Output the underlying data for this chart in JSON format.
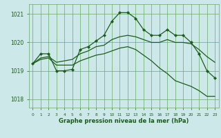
{
  "title": "Graphe pression niveau de la mer (hPa)",
  "bg_color": "#cce8e8",
  "grid_color": "#66aa66",
  "line_color": "#1a5c1a",
  "xlim": [
    -0.5,
    23.5
  ],
  "ylim": [
    1017.7,
    1021.35
  ],
  "yticks": [
    1018,
    1019,
    1020,
    1021
  ],
  "xticks": [
    0,
    1,
    2,
    3,
    4,
    5,
    6,
    7,
    8,
    9,
    10,
    11,
    12,
    13,
    14,
    15,
    16,
    17,
    18,
    19,
    20,
    21,
    22,
    23
  ],
  "line1_x": [
    0,
    1,
    2,
    3,
    4,
    5,
    6,
    7,
    8,
    9,
    10,
    11,
    12,
    13,
    14,
    15,
    16,
    17,
    18,
    19,
    20,
    21,
    22,
    23
  ],
  "line1_y": [
    1019.25,
    1019.6,
    1019.6,
    1019.0,
    1019.0,
    1019.05,
    1019.75,
    1019.85,
    1020.05,
    1020.25,
    1020.75,
    1021.05,
    1021.05,
    1020.85,
    1020.45,
    1020.25,
    1020.25,
    1020.45,
    1020.25,
    1020.25,
    1020.0,
    1019.6,
    1019.0,
    1018.75
  ],
  "line2_x": [
    0,
    1,
    2,
    3,
    4,
    5,
    6,
    7,
    8,
    9,
    10,
    11,
    12,
    13,
    14,
    15,
    16,
    17,
    18,
    19,
    20,
    21,
    22,
    23
  ],
  "line2_y": [
    1019.25,
    1019.45,
    1019.5,
    1019.3,
    1019.35,
    1019.4,
    1019.6,
    1019.7,
    1019.85,
    1019.9,
    1020.1,
    1020.2,
    1020.25,
    1020.2,
    1020.1,
    1020.0,
    1020.0,
    1020.1,
    1020.0,
    1020.0,
    1019.95,
    1019.75,
    1019.5,
    1019.3
  ],
  "line3_x": [
    0,
    1,
    2,
    3,
    4,
    5,
    6,
    7,
    8,
    9,
    10,
    11,
    12,
    13,
    14,
    15,
    16,
    17,
    18,
    19,
    20,
    21,
    22,
    23
  ],
  "line3_y": [
    1019.25,
    1019.4,
    1019.45,
    1019.2,
    1019.2,
    1019.2,
    1019.35,
    1019.45,
    1019.55,
    1019.6,
    1019.7,
    1019.8,
    1019.85,
    1019.75,
    1019.55,
    1019.35,
    1019.1,
    1018.9,
    1018.65,
    1018.55,
    1018.45,
    1018.3,
    1018.1,
    1018.1
  ]
}
